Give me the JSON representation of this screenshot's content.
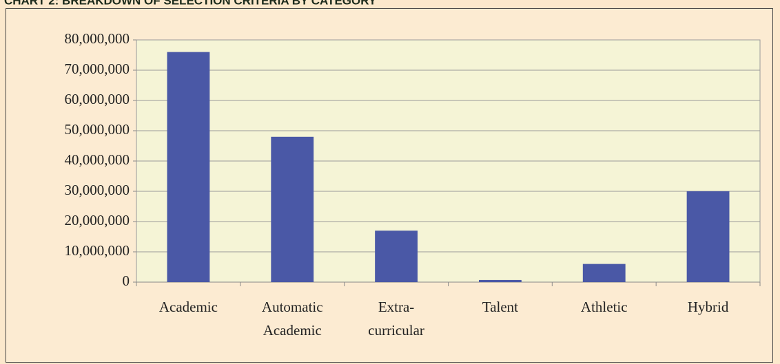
{
  "chart_data": {
    "type": "bar",
    "title": "CHART 2: BREAKDOWN OF SELECTION CRITERIA BY CATEGORY",
    "categories": [
      [
        "Academic"
      ],
      [
        "Automatic",
        "Academic"
      ],
      [
        "Extra-",
        "curricular"
      ],
      [
        "Talent"
      ],
      [
        "Athletic"
      ],
      [
        "Hybrid"
      ]
    ],
    "values": [
      76000000,
      48000000,
      17000000,
      700000,
      6000000,
      30000000
    ],
    "color": "#4a58a6",
    "ylim": [
      0,
      80000000
    ],
    "yticks": [
      0,
      {
        "value": 10000000,
        "label": "10,000,000"
      },
      {
        "value": 20000000,
        "label": "20,000,000"
      },
      {
        "value": 30000000,
        "label": "30,000,000"
      },
      {
        "value": 40000000,
        "label": "40,000,000"
      },
      {
        "value": 50000000,
        "label": "50,000,000"
      },
      {
        "value": 60000000,
        "label": "60,000,000"
      },
      {
        "value": 70000000,
        "label": "70,000,000"
      },
      {
        "value": 80000000,
        "label": "80,000,000"
      }
    ],
    "grid": true
  }
}
